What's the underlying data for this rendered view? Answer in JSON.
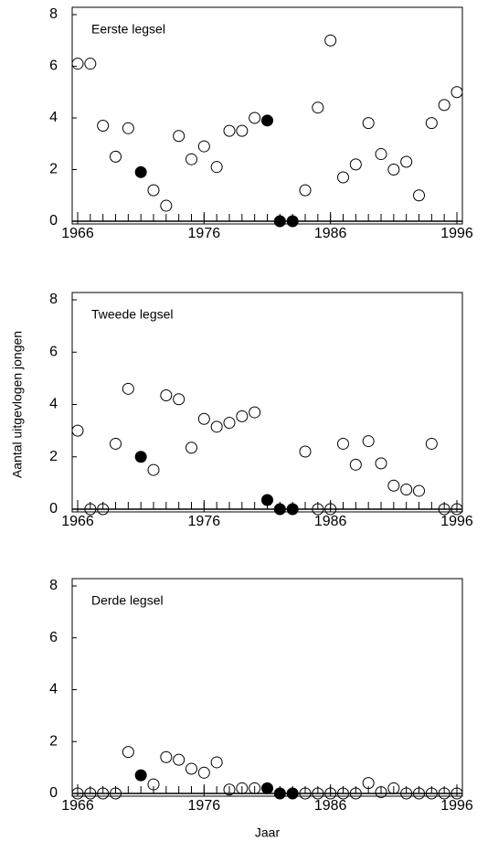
{
  "chart_data": [
    {
      "type": "scatter",
      "title": "Eerste legsel",
      "xlim": [
        1966,
        1996
      ],
      "xticks": [
        1966,
        1976,
        1986,
        1996
      ],
      "ylim": [
        0,
        8
      ],
      "yticks": [
        0,
        2,
        4,
        6,
        8
      ],
      "series": [
        {
          "color": "#000000",
          "filled": false,
          "x": [
            1966,
            1967,
            1968,
            1969,
            1970,
            1972,
            1973,
            1974,
            1975,
            1976,
            1977,
            1978,
            1979,
            1980,
            1984,
            1985,
            1986,
            1987,
            1988,
            1989,
            1990,
            1991,
            1992,
            1993,
            1994,
            1995,
            1996
          ],
          "values": [
            6.1,
            6.1,
            3.7,
            2.5,
            3.6,
            1.2,
            0.6,
            3.3,
            2.4,
            2.9,
            2.1,
            3.5,
            3.5,
            4.0,
            1.2,
            4.4,
            7.0,
            1.7,
            2.2,
            3.8,
            2.6,
            2.0,
            2.3,
            1.0,
            3.8,
            4.5,
            5.0
          ]
        },
        {
          "color": "#000000",
          "filled": true,
          "x": [
            1971,
            1981,
            1982,
            1983
          ],
          "values": [
            1.9,
            3.9,
            0,
            0
          ]
        }
      ]
    },
    {
      "type": "scatter",
      "title": "Tweede legsel",
      "ylabel": "Aantal uitgevlogen jongen",
      "xlim": [
        1966,
        1996
      ],
      "xticks": [
        1966,
        1976,
        1986,
        1996
      ],
      "ylim": [
        0,
        8
      ],
      "yticks": [
        0,
        2,
        4,
        6,
        8
      ],
      "series": [
        {
          "color": "#000000",
          "filled": false,
          "x": [
            1966,
            1967,
            1968,
            1969,
            1970,
            1972,
            1973,
            1974,
            1975,
            1976,
            1977,
            1978,
            1979,
            1980,
            1984,
            1985,
            1986,
            1987,
            1988,
            1989,
            1990,
            1991,
            1992,
            1993,
            1994,
            1995,
            1996
          ],
          "values": [
            3.0,
            0,
            0,
            2.5,
            4.6,
            1.5,
            4.35,
            4.2,
            2.35,
            3.45,
            3.15,
            3.3,
            3.55,
            3.7,
            2.2,
            0,
            0,
            2.5,
            1.7,
            2.6,
            1.75,
            0.9,
            0.75,
            0.7,
            2.5,
            0,
            0
          ]
        },
        {
          "color": "#000000",
          "filled": true,
          "x": [
            1971,
            1981,
            1982,
            1983
          ],
          "values": [
            2.0,
            0.35,
            0,
            0
          ]
        }
      ]
    },
    {
      "type": "scatter",
      "title": "Derde legsel",
      "xlabel": "Jaar",
      "xlim": [
        1966,
        1996
      ],
      "xticks": [
        1966,
        1976,
        1986,
        1996
      ],
      "ylim": [
        0,
        8
      ],
      "yticks": [
        0,
        2,
        4,
        6,
        8
      ],
      "series": [
        {
          "color": "#000000",
          "filled": false,
          "x": [
            1966,
            1967,
            1968,
            1969,
            1970,
            1972,
            1973,
            1974,
            1975,
            1976,
            1977,
            1978,
            1979,
            1980,
            1984,
            1985,
            1986,
            1987,
            1988,
            1989,
            1990,
            1991,
            1992,
            1993,
            1994,
            1995,
            1996
          ],
          "values": [
            0,
            0,
            0,
            0,
            1.6,
            0.35,
            1.4,
            1.3,
            0.95,
            0.8,
            1.2,
            0.15,
            0.2,
            0.2,
            0,
            0,
            0,
            0,
            0,
            0.4,
            0.05,
            0.2,
            0,
            0,
            0,
            0,
            0
          ]
        },
        {
          "color": "#000000",
          "filled": true,
          "x": [
            1971,
            1981,
            1982,
            1983
          ],
          "values": [
            0.7,
            0.2,
            0,
            0
          ]
        }
      ]
    }
  ]
}
